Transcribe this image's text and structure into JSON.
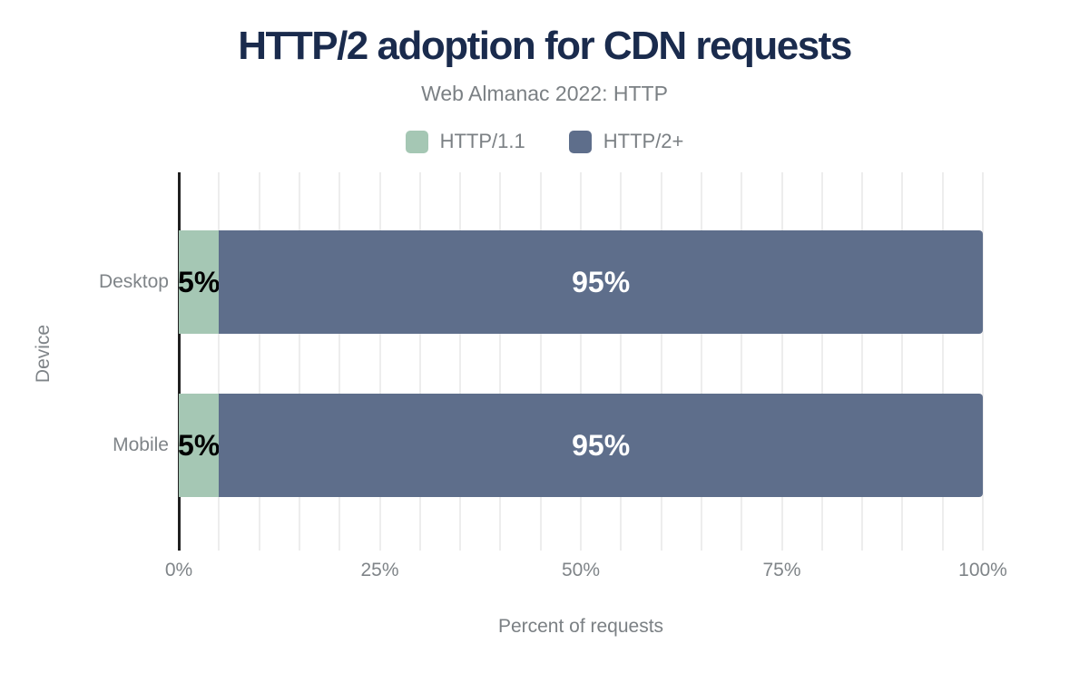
{
  "header": {
    "title": "HTTP/2 adoption for CDN requests",
    "subtitle": "Web Almanac 2022: HTTP"
  },
  "chart_data": {
    "type": "bar",
    "orientation": "horizontal",
    "stacked": true,
    "title": "HTTP/2 adoption for CDN requests",
    "subtitle": "Web Almanac 2022: HTTP",
    "categories": [
      "Desktop",
      "Mobile"
    ],
    "series": [
      {
        "name": "HTTP/1.1",
        "color": "#a5c7b4",
        "label_color": "#000000",
        "values": [
          5,
          5
        ]
      },
      {
        "name": "HTTP/2+",
        "color": "#5e6e8b",
        "label_color": "#ffffff",
        "values": [
          95,
          95
        ]
      }
    ],
    "value_suffix": "%",
    "xlabel": "Percent of requests",
    "ylabel": "Device",
    "xlim": [
      0,
      100
    ],
    "x_ticks": [
      "0%",
      "25%",
      "50%",
      "75%",
      "100%"
    ],
    "grid_step": 5,
    "grid": "vertical-minor",
    "legend_position": "top"
  },
  "colors": {
    "title_text": "#1a2b4d",
    "muted_text": "#7b8084",
    "axis_line": "#202020",
    "gridline": "#ededed",
    "background": "#ffffff"
  }
}
